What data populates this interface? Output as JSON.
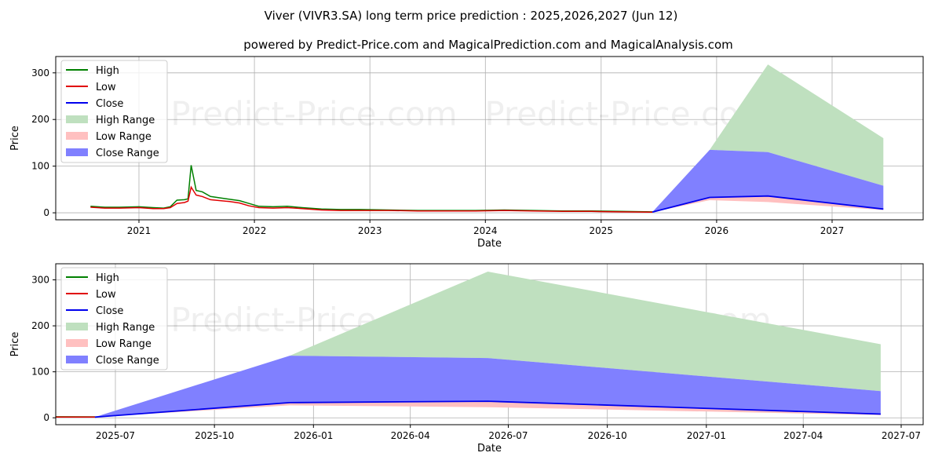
{
  "chart_data": {
    "type": "line",
    "title": "Viver (VIVR3.SA) long term price prediction : 2025,2026,2027 (Jun 12)",
    "subtitle": "powered by Predict-Price.com and MagicalPrediction.com and MagicalAnalysis.com",
    "watermark": "Predict-Price.com",
    "legend": {
      "placement": "top-left",
      "entries": [
        "High",
        "Low",
        "Close",
        "High Range",
        "Low Range",
        "Close Range"
      ]
    },
    "colors": {
      "high": "#008000",
      "low": "#e00000",
      "close": "#0000ee",
      "high_range": "#bfe0bf",
      "low_range": "#ffc0c0",
      "close_range": "#8080ff"
    },
    "historical": {
      "dates": [
        "2020-08-01",
        "2020-09-15",
        "2020-11-01",
        "2021-01-01",
        "2021-02-15",
        "2021-03-20",
        "2021-04-10",
        "2021-05-01",
        "2021-05-25",
        "2021-06-05",
        "2021-06-15",
        "2021-07-01",
        "2021-07-20",
        "2021-08-15",
        "2021-09-15",
        "2021-10-15",
        "2021-11-15",
        "2021-12-15",
        "2022-01-15",
        "2022-03-01",
        "2022-04-15",
        "2022-06-01",
        "2022-08-01",
        "2022-10-01",
        "2022-12-01",
        "2023-03-01",
        "2023-06-01",
        "2023-09-01",
        "2023-12-01",
        "2024-03-01",
        "2024-06-01",
        "2024-09-01",
        "2024-12-01",
        "2025-03-01",
        "2025-06-12"
      ],
      "high": [
        14,
        12,
        12,
        13,
        11,
        10,
        13,
        27,
        28,
        30,
        102,
        48,
        45,
        35,
        32,
        29,
        26,
        20,
        14,
        13,
        14,
        11,
        8,
        7,
        7,
        6,
        5,
        5,
        5,
        6,
        5,
        4,
        4,
        3,
        2
      ],
      "low": [
        12,
        10,
        10,
        11,
        9,
        9,
        11,
        20,
        22,
        25,
        55,
        38,
        35,
        28,
        26,
        24,
        21,
        15,
        11,
        10,
        11,
        9,
        6,
        5,
        5,
        5,
        4,
        4,
        4,
        5,
        4,
        3,
        3,
        2,
        1.5
      ]
    },
    "forecast": {
      "dates": [
        "2025-06-12",
        "2025-12-10",
        "2026-06-12",
        "2027-06-12"
      ],
      "high_range_top": [
        1.6,
        135,
        318,
        160
      ],
      "close_range_top": [
        1.6,
        135,
        130,
        58
      ],
      "close": [
        1.6,
        33,
        36,
        8
      ],
      "low_range_bottom": [
        1.6,
        27,
        23,
        6
      ]
    },
    "top": {
      "xlabel": "Date",
      "ylabel": "Price",
      "xticks": [
        "2021",
        "2022",
        "2023",
        "2024",
        "2025",
        "2026",
        "2027"
      ],
      "yticks": [
        0,
        100,
        200,
        300
      ],
      "ylim": [
        -15,
        335
      ]
    },
    "bottom": {
      "xlabel": "Date",
      "ylabel": "Price",
      "xticks": [
        "2025-07",
        "2025-10",
        "2026-01",
        "2026-04",
        "2026-07",
        "2026-10",
        "2027-01",
        "2027-04",
        "2027-07"
      ],
      "yticks": [
        0,
        100,
        200,
        300
      ],
      "ylim": [
        -15,
        335
      ]
    }
  }
}
